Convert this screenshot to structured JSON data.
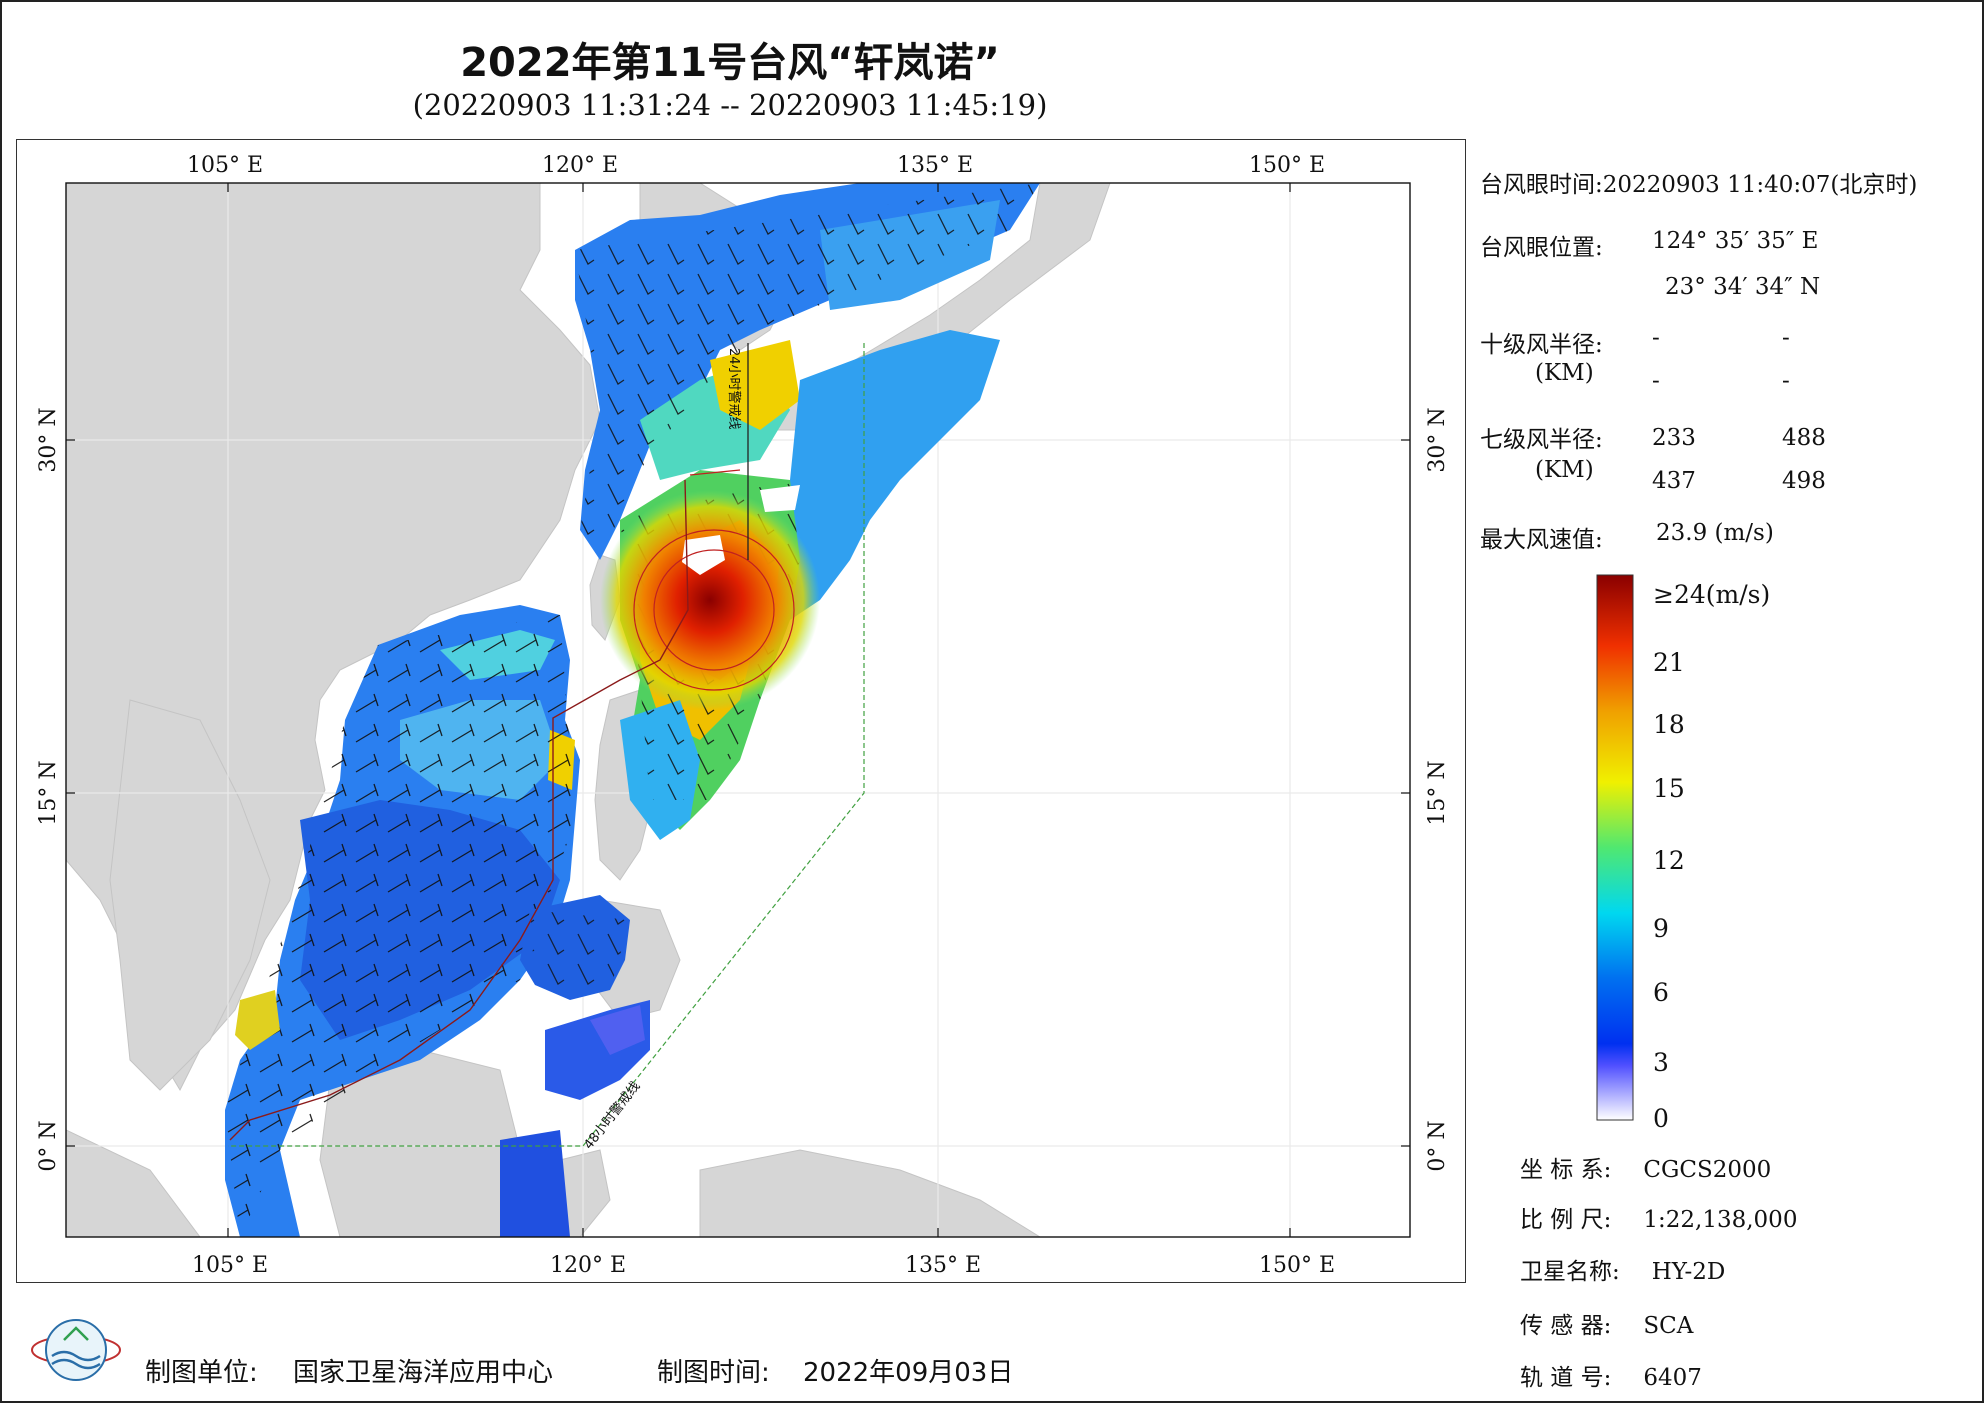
{
  "header": {
    "title": "2022年第11号台风“轩岚诺”",
    "subtitle": "(20220903 11:31:24 -- 20220903 11:45:19)"
  },
  "map": {
    "lon_labels": [
      "105° E",
      "120° E",
      "135° E",
      "150° E"
    ],
    "lat_labels": [
      "30° N",
      "15° N",
      "0° N"
    ],
    "warning_24h": "24小时警戒线",
    "warning_48h": "48小时警戒线"
  },
  "info": {
    "eye_time_label": "台风眼时间:",
    "eye_time_value": "20220903 11:40:07(北京时)",
    "eye_pos_label": "台风眼位置:",
    "eye_lon": "124° 35′ 35″ E",
    "eye_lat": "23° 34′ 34″ N",
    "r10_label": "十级风半径:",
    "r10_unit": "(KM)",
    "r10_values": [
      "-",
      "-",
      "-",
      "-"
    ],
    "r7_label": "七级风半径:",
    "r7_unit": "(KM)",
    "r7_values": [
      "233",
      "488",
      "437",
      "498"
    ],
    "max_wind_label": "最大风速值:",
    "max_wind_value": "23.9  (m/s)"
  },
  "colorbar": {
    "top_label": "≥24(m/s)",
    "ticks": [
      "21",
      "18",
      "15",
      "12",
      "9",
      "6",
      "3",
      "0"
    ],
    "colors": [
      "#ffffff",
      "#5050ff",
      "#0030f0",
      "#0090f0",
      "#00d8f0",
      "#50e870",
      "#f0f000",
      "#f0a000",
      "#f03000",
      "#8a0000"
    ]
  },
  "meta": {
    "crs_label": "坐 标 系:",
    "crs_value": "CGCS2000",
    "scale_label": "比 例 尺:",
    "scale_value": "1:22,138,000",
    "satellite_label": "卫星名称:",
    "satellite_value": "HY-2D",
    "sensor_label": "传 感 器:",
    "sensor_value": "SCA",
    "orbit_label": "轨 道 号:",
    "orbit_value": "6407"
  },
  "footer": {
    "org_label": "制图单位:",
    "org_value": "国家卫星海洋应用中心",
    "date_label": "制图时间:",
    "date_value": "2022年09月03日"
  }
}
